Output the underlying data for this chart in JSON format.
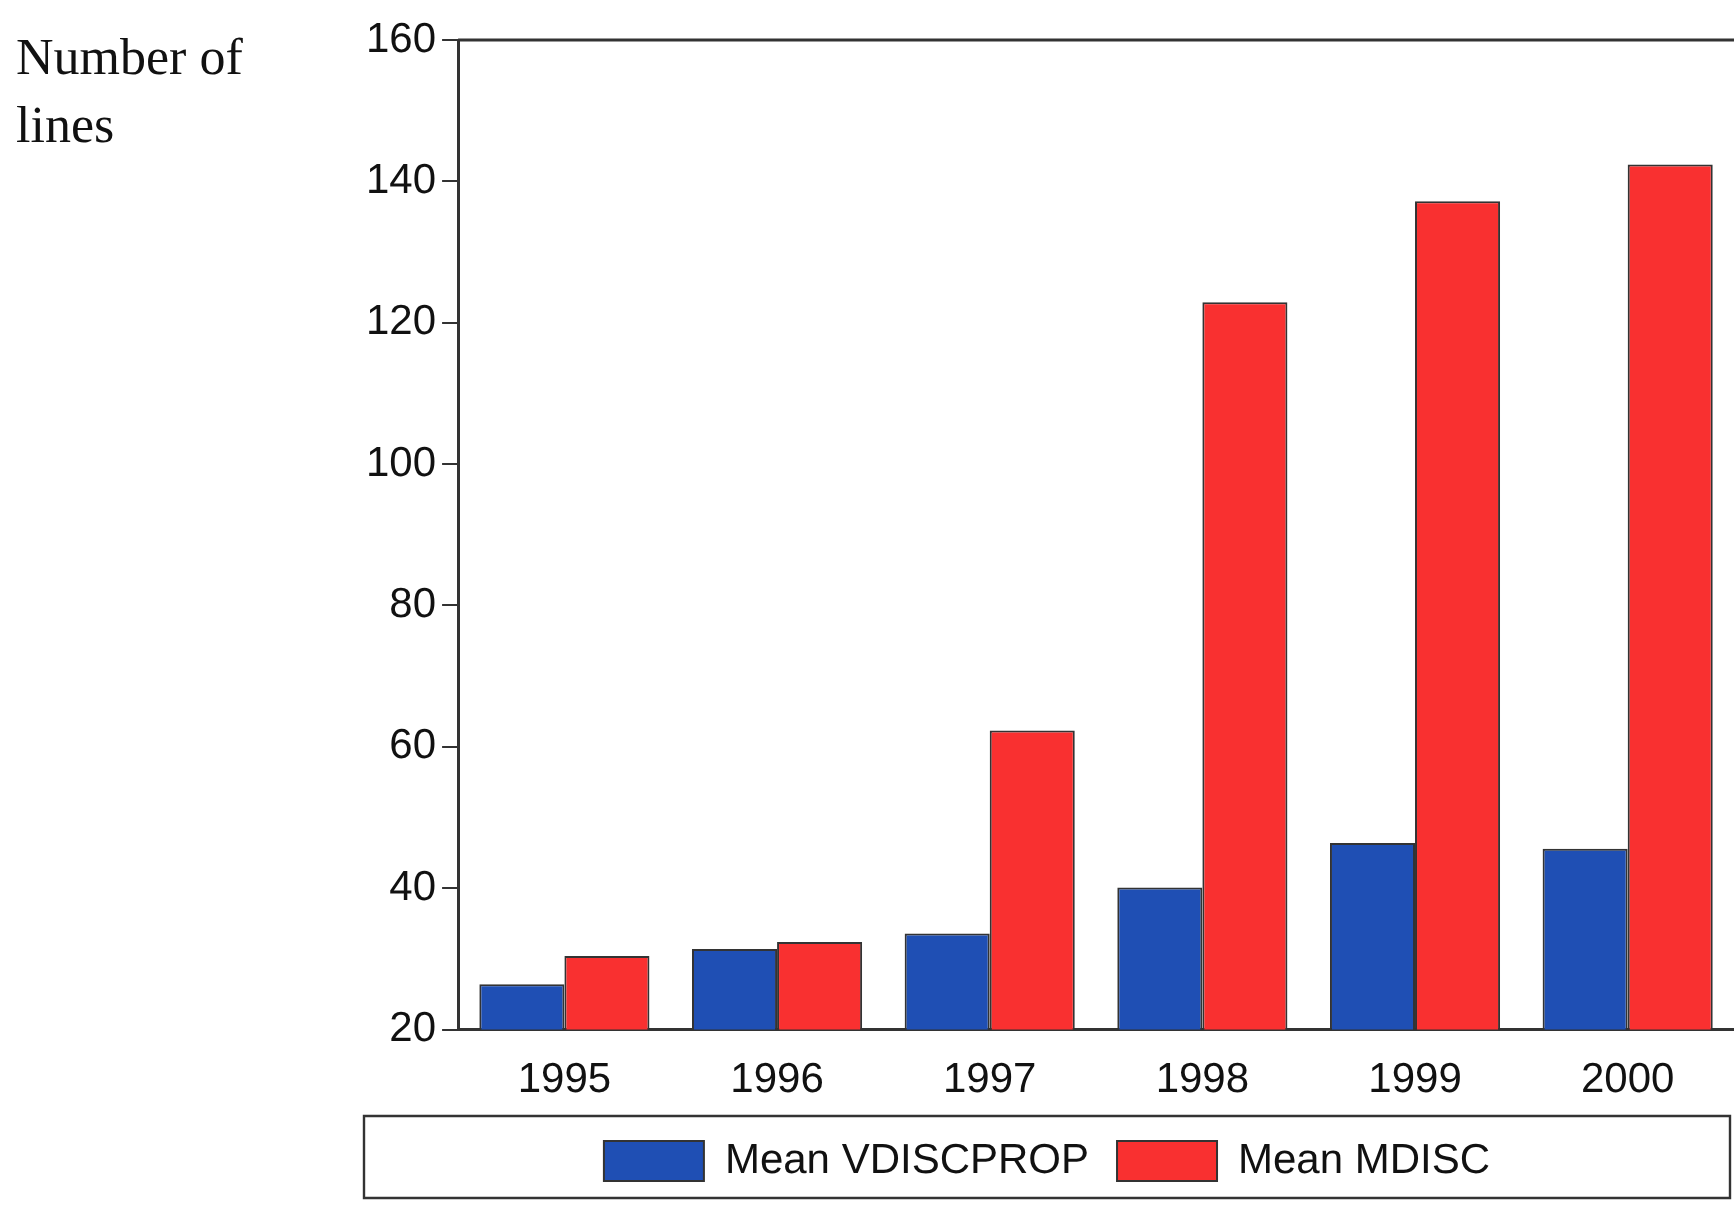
{
  "chart_data": {
    "type": "bar",
    "ylabel": "Number of lines",
    "categories": [
      "1995",
      "1996",
      "1997",
      "1998",
      "1999",
      "2000"
    ],
    "series": [
      {
        "name": "Mean VDISCPROP",
        "color": "#1f4fb4",
        "values": [
          26.4,
          31.4,
          33.6,
          40.1,
          46.4,
          45.6
        ]
      },
      {
        "name": "Mean MDISC",
        "color": "#f93030",
        "values": [
          30.4,
          32.4,
          62.3,
          122.9,
          137.2,
          142.4
        ]
      }
    ],
    "ylim": [
      20,
      160
    ],
    "yticks": [
      20,
      40,
      60,
      80,
      100,
      120,
      140,
      160
    ],
    "grid": false,
    "legend": "bottom"
  }
}
